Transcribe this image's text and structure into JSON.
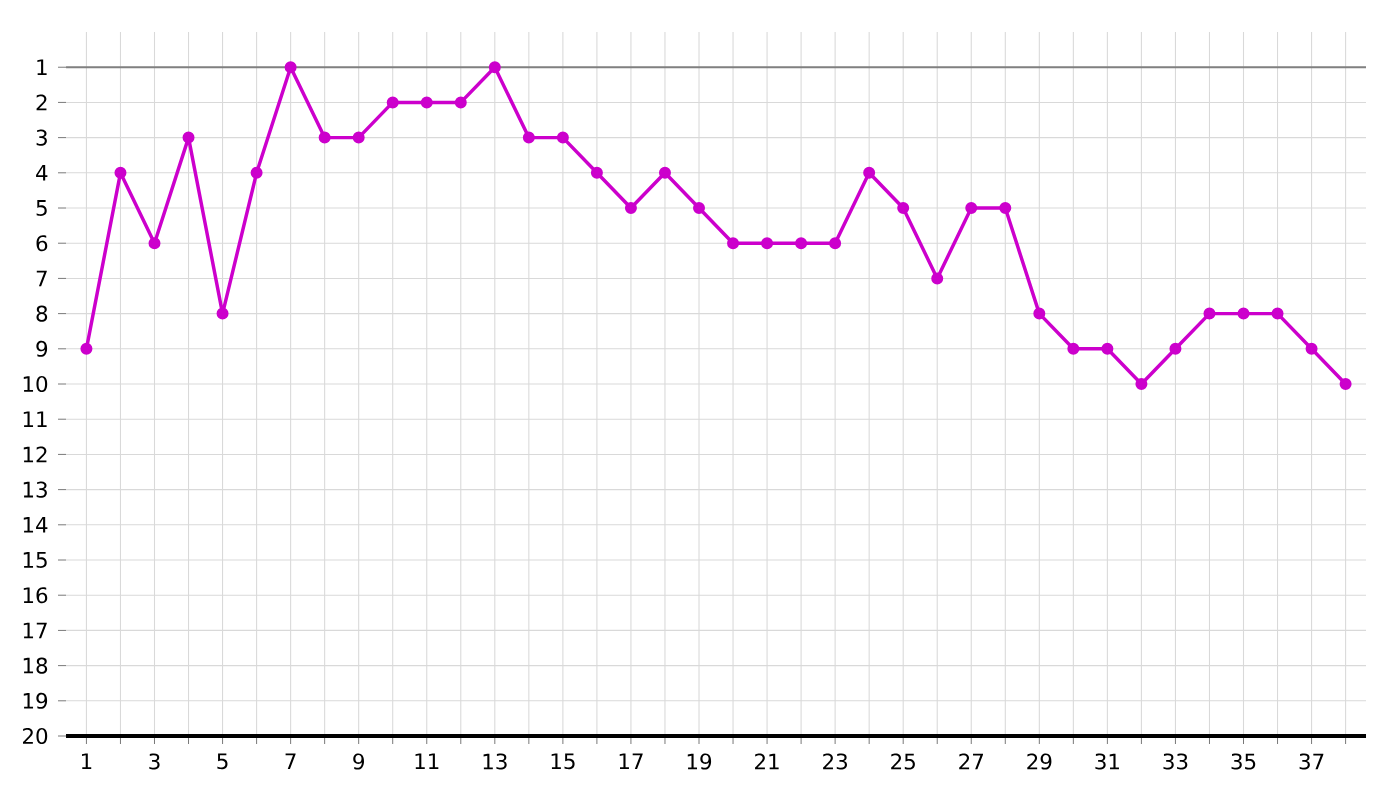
{
  "chart_data": {
    "type": "line",
    "color": "#cc00cc",
    "marker": "circle",
    "line_style": "solid",
    "grid": true,
    "x": [
      1,
      2,
      3,
      4,
      5,
      6,
      7,
      8,
      9,
      10,
      11,
      12,
      13,
      14,
      15,
      16,
      17,
      18,
      19,
      20,
      21,
      22,
      23,
      24,
      25,
      26,
      27,
      28,
      29,
      30,
      31,
      32,
      33,
      34,
      35,
      36,
      37,
      38
    ],
    "values": [
      9,
      4,
      6,
      3,
      8,
      4,
      1,
      3,
      3,
      2,
      2,
      2,
      1,
      3,
      3,
      4,
      5,
      4,
      5,
      6,
      6,
      6,
      6,
      4,
      5,
      7,
      5,
      5,
      8,
      9,
      9,
      10,
      9,
      8,
      8,
      8,
      9,
      10
    ],
    "xlim": [
      0.4,
      38.6
    ],
    "xticks": [
      1,
      {
        "value": 2,
        "label": null
      },
      3,
      {
        "value": 4,
        "label": null
      },
      5,
      {
        "value": 6,
        "label": null
      },
      7,
      {
        "value": 8,
        "label": null
      },
      9,
      {
        "value": 10,
        "label": null
      },
      11,
      {
        "value": 12,
        "label": null
      },
      13,
      {
        "value": 14,
        "label": null
      },
      15,
      {
        "value": 16,
        "label": null
      },
      17,
      {
        "value": 18,
        "label": null
      },
      19,
      {
        "value": 20,
        "label": null
      },
      21,
      {
        "value": 22,
        "label": null
      },
      23,
      {
        "value": 24,
        "label": null
      },
      25,
      {
        "value": 26,
        "label": null
      },
      27,
      {
        "value": 28,
        "label": null
      },
      29,
      {
        "value": 30,
        "label": null
      },
      31,
      {
        "value": 32,
        "label": null
      },
      33,
      {
        "value": 34,
        "label": null
      },
      35,
      {
        "value": 36,
        "label": null
      },
      37,
      {
        "value": 38,
        "label": null
      }
    ],
    "ylim": [
      20,
      0
    ],
    "yticks": [
      1,
      2,
      3,
      4,
      5,
      6,
      7,
      8,
      9,
      10,
      11,
      12,
      13,
      14,
      15,
      16,
      17,
      18,
      19,
      20
    ],
    "ref_lines": [
      {
        "axis": "y",
        "value": 1,
        "color": "#808080"
      }
    ]
  }
}
